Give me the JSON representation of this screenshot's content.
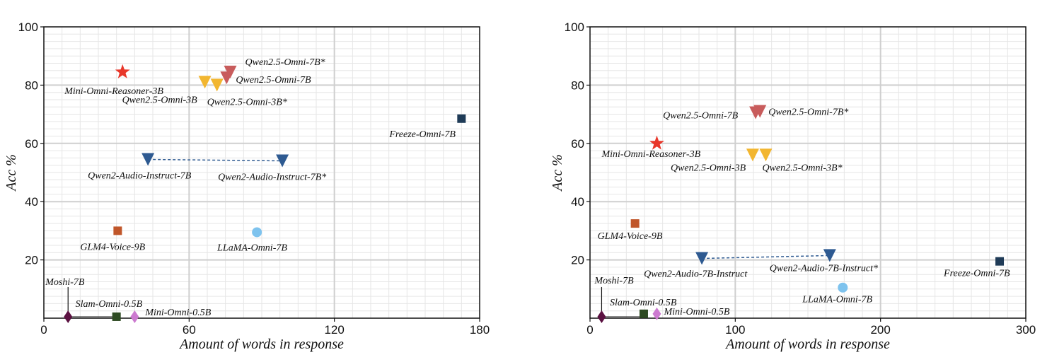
{
  "chart_data": [
    {
      "type": "scatter",
      "xlabel": "Amount of words in response",
      "ylabel": "Acc %",
      "xlim": [
        0,
        180
      ],
      "ylim": [
        0,
        100
      ],
      "xticks": [
        0,
        60,
        120,
        180
      ],
      "yticks": [
        20,
        40,
        60,
        80,
        100
      ],
      "grid": true,
      "points": [
        {
          "label": "Mini-Omni-Reasoner-3B",
          "x": 32.5,
          "y": 84.5,
          "marker": "star",
          "color": "#e8372a"
        },
        {
          "label": "Qwen2.5-Omni-3B",
          "x": 66.5,
          "y": 81,
          "marker": "triangle-down",
          "color": "#f2b630"
        },
        {
          "label": "Qwen2.5-Omni-3B*",
          "x": 71.5,
          "y": 80,
          "marker": "triangle-down",
          "color": "#f2b630"
        },
        {
          "label": "Qwen2.5-Omni-7B",
          "x": 75.5,
          "y": 82.5,
          "marker": "triangle-down",
          "color": "#c85c5c"
        },
        {
          "label": "Qwen2.5-Omni-7B*",
          "x": 77,
          "y": 84.5,
          "marker": "triangle-down",
          "color": "#c85c5c"
        },
        {
          "label": "Freeze-Omni-7B",
          "x": 172.5,
          "y": 68.5,
          "marker": "square",
          "color": "#1f3b57"
        },
        {
          "label": "Qwen2-Audio-Instruct-7B",
          "x": 43,
          "y": 54.5,
          "marker": "triangle-down",
          "color": "#2e5a91"
        },
        {
          "label": "Qwen2-Audio-Instruct-7B*",
          "x": 98.5,
          "y": 54,
          "marker": "triangle-down",
          "color": "#2e5a91"
        },
        {
          "label": "GLM4-Voice-9B",
          "x": 30.5,
          "y": 30,
          "marker": "square",
          "color": "#c0562a"
        },
        {
          "label": "LLaMA-Omni-7B",
          "x": 88,
          "y": 29.5,
          "marker": "circle",
          "color": "#7ec3ee"
        },
        {
          "label": "Moshi-7B",
          "x": 10,
          "y": 0.5,
          "marker": "diamond",
          "color": "#5a1040"
        },
        {
          "label": "Slam-Omni-0.5B",
          "x": 30,
          "y": 0.5,
          "marker": "square",
          "color": "#2d4a22"
        },
        {
          "label": "Mini-Omni-0.5B",
          "x": 37.5,
          "y": 0.5,
          "marker": "diamond",
          "color": "#cc7ad0"
        }
      ]
    },
    {
      "type": "scatter",
      "xlabel": "Amount of words in response",
      "ylabel": "Acc %",
      "xlim": [
        0,
        300
      ],
      "ylim": [
        0,
        100
      ],
      "xticks": [
        0,
        100,
        200,
        300
      ],
      "yticks": [
        20,
        40,
        60,
        80,
        100
      ],
      "grid": true,
      "points": [
        {
          "label": "Qwen2.5-Omni-7B",
          "x": 114,
          "y": 70.5,
          "marker": "triangle-down",
          "color": "#c85c5c"
        },
        {
          "label": "Qwen2.5-Omni-7B*",
          "x": 117,
          "y": 71,
          "marker": "triangle-down",
          "color": "#c85c5c"
        },
        {
          "label": "Mini-Omni-Reasoner-3B",
          "x": 46,
          "y": 60,
          "marker": "star",
          "color": "#e8372a"
        },
        {
          "label": "Qwen2.5-Omni-3B",
          "x": 112,
          "y": 56,
          "marker": "triangle-down",
          "color": "#f2b630"
        },
        {
          "label": "Qwen2.5-Omni-3B*",
          "x": 121,
          "y": 56,
          "marker": "triangle-down",
          "color": "#f2b630"
        },
        {
          "label": "GLM4-Voice-9B",
          "x": 31,
          "y": 32.5,
          "marker": "square",
          "color": "#c0562a"
        },
        {
          "label": "Qwen2-Audio-7B-Instruct",
          "x": 77,
          "y": 20.5,
          "marker": "triangle-down",
          "color": "#2e5a91"
        },
        {
          "label": "Qwen2-Audio-7B-Instruct*",
          "x": 165,
          "y": 21.5,
          "marker": "triangle-down",
          "color": "#2e5a91"
        },
        {
          "label": "Freeze-Omni-7B",
          "x": 282,
          "y": 19.5,
          "marker": "square",
          "color": "#1f3b57"
        },
        {
          "label": "LLaMA-Omni-7B",
          "x": 174,
          "y": 10.5,
          "marker": "circle",
          "color": "#7ec3ee"
        },
        {
          "label": "Moshi-7B",
          "x": 8,
          "y": 0.5,
          "marker": "diamond",
          "color": "#5a1040"
        },
        {
          "label": "Slam-Omni-0.5B",
          "x": 37,
          "y": 1.5,
          "marker": "square",
          "color": "#2d4a22"
        },
        {
          "label": "Mini-Omni-0.5B",
          "x": 46,
          "y": 1.5,
          "marker": "diamond",
          "color": "#cc7ad0"
        }
      ]
    }
  ]
}
